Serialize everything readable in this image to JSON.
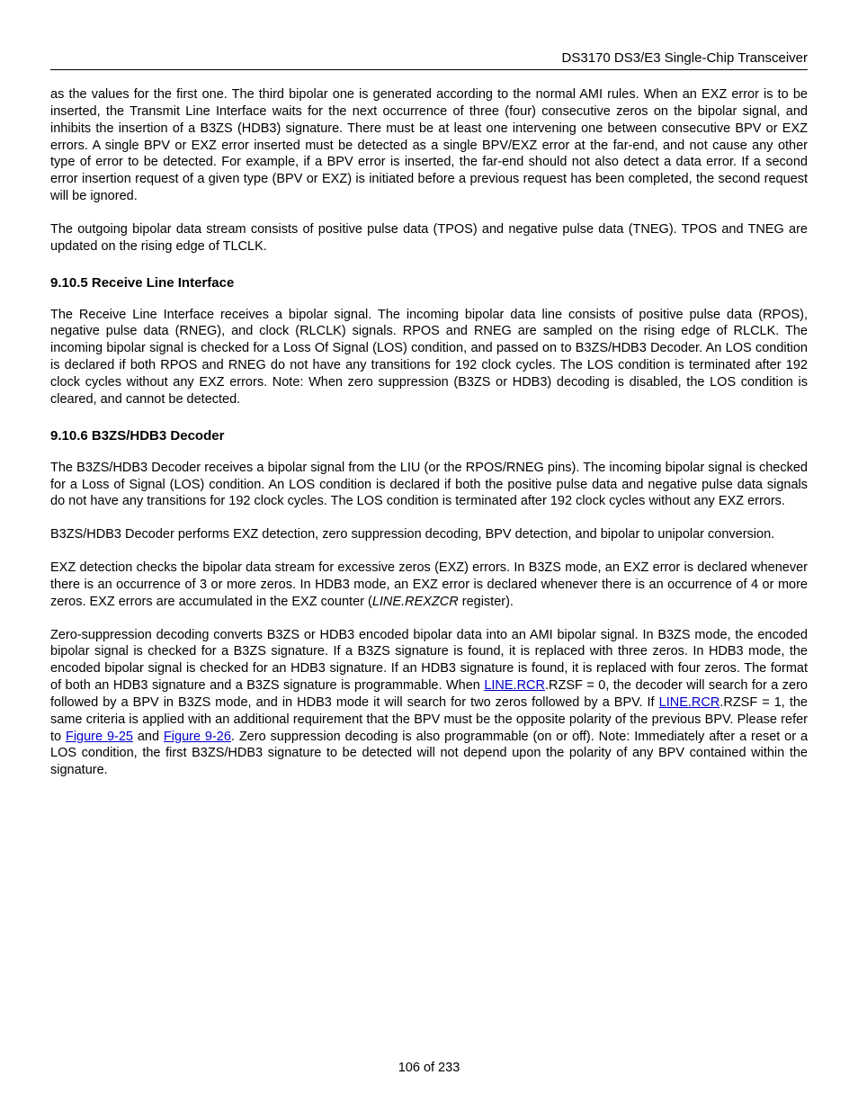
{
  "header": {
    "title": "DS3170 DS3/E3 Single-Chip Transceiver"
  },
  "paragraphs": {
    "p1": "as the values for the first one. The third bipolar one is generated according to the normal AMI rules. When an EXZ error is to be inserted, the Transmit Line Interface waits for the next occurrence of three (four) consecutive zeros on the bipolar signal, and inhibits the insertion of a B3ZS (HDB3) signature. There must be at least one intervening one between consecutive BPV or EXZ errors. A single BPV or EXZ error inserted must be detected as a single BPV/EXZ error at the far-end, and not cause any other type of error to be detected. For example, if a BPV error is inserted, the far-end should not also detect a data error. If a second error insertion request of a given type (BPV or EXZ) is initiated before a previous request has been completed, the second request will be ignored.",
    "p2": "The outgoing bipolar data stream consists of positive pulse data (TPOS) and negative pulse data (TNEG). TPOS and TNEG are updated on the rising edge of TLCLK.",
    "h1": "9.10.5  Receive Line Interface",
    "p3": "The Receive Line Interface receives a bipolar signal. The incoming bipolar data line consists of positive pulse data (RPOS), negative pulse data (RNEG), and clock (RLCLK) signals. RPOS and RNEG are sampled on the rising edge of RLCLK. The incoming bipolar signal is checked for a Loss Of Signal (LOS) condition, and passed on to B3ZS/HDB3 Decoder. An LOS condition is declared if both RPOS and RNEG do not have any transitions for 192 clock cycles. The LOS condition is terminated after 192 clock cycles without any EXZ errors. Note: When zero suppression (B3ZS or HDB3) decoding is disabled, the LOS condition is cleared, and cannot be detected.",
    "h2": "9.10.6  B3ZS/HDB3 Decoder",
    "p4": "The B3ZS/HDB3 Decoder receives a bipolar signal from the LIU (or the RPOS/RNEG pins).  The incoming bipolar signal is checked for a Loss of Signal (LOS) condition. An LOS condition is declared if both the positive pulse data and negative pulse data signals do not have any transitions for 192 clock cycles. The LOS condition is terminated after 192 clock cycles without any EXZ errors.",
    "p5": "B3ZS/HDB3 Decoder performs EXZ detection, zero suppression decoding, BPV detection, and bipolar to unipolar conversion.",
    "p6_a": "EXZ detection checks the bipolar data stream for excessive zeros (EXZ) errors. In B3ZS mode, an EXZ error is declared whenever there is an occurrence of 3 or more zeros. In HDB3 mode, an EXZ error is declared whenever there is an occurrence of 4 or more zeros. EXZ errors are accumulated in the EXZ counter (",
    "p6_italic": "LINE.REXZCR",
    "p6_b": " register).",
    "p7_a": "Zero-suppression decoding converts B3ZS or HDB3 encoded bipolar data into an AMI bipolar signal. In B3ZS mode, the encoded bipolar signal is checked for a B3ZS signature. If a B3ZS signature is found, it is replaced with three zeros.  In HDB3 mode, the encoded bipolar signal is checked for an HDB3 signature. If an HDB3 signature is found, it is replaced with four zeros. The format of both an HDB3 signature and a B3ZS signature is programmable. When ",
    "p7_link1": "LINE.RCR",
    "p7_b": ".RZSF = 0, the decoder will search for a zero followed by a BPV in B3ZS mode, and in HDB3 mode it will search for two zeros followed by a BPV.  If ",
    "p7_link2": "LINE.RCR",
    "p7_c": ".RZSF = 1, the same criteria is applied with an additional requirement that the BPV must be the opposite polarity of the previous BPV.  Please refer to ",
    "p7_link3": "Figure 9-25",
    "p7_d": " and ",
    "p7_link4": "Figure 9-26",
    "p7_e": ".  Zero suppression decoding is also programmable (on or off). Note: Immediately after a reset or a LOS condition, the first B3ZS/HDB3 signature to be detected will not depend upon the polarity of any BPV contained within the signature."
  },
  "footer": {
    "page_info": "106 of 233"
  }
}
